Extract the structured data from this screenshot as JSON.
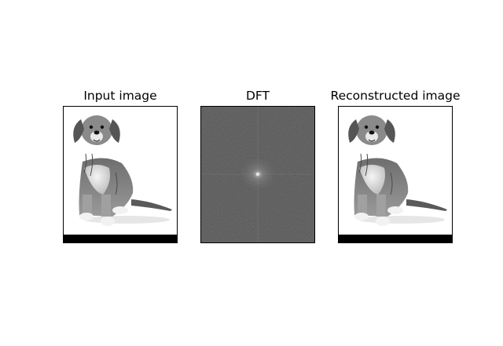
{
  "panels": [
    {
      "title": "Input image"
    },
    {
      "title": "DFT"
    },
    {
      "title": "Reconstructed image"
    }
  ],
  "icons": {
    "input": "dog-photo-icon",
    "dft": "dft-spectrum-icon",
    "reconstructed": "dog-photo-icon"
  }
}
